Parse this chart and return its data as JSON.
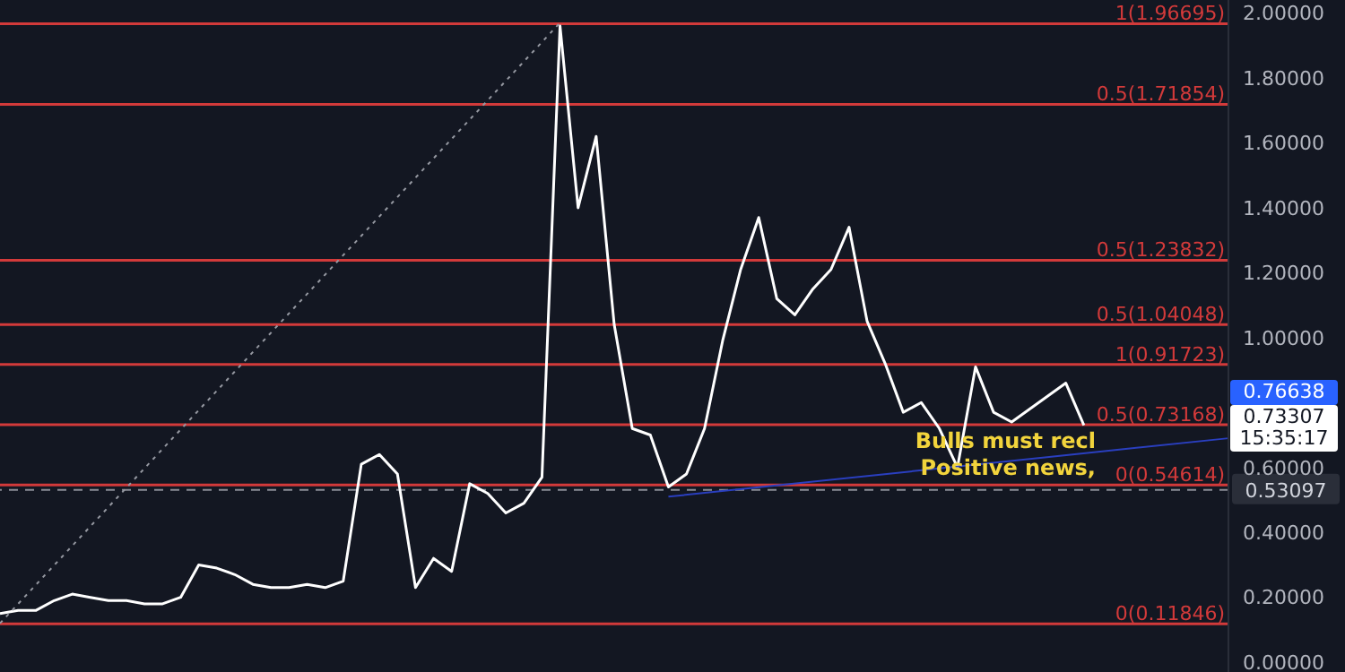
{
  "chart_data": {
    "type": "line",
    "categories": [
      null,
      null,
      null,
      null,
      null,
      null,
      null,
      null,
      null,
      null,
      null,
      null,
      null,
      null,
      null,
      null,
      null,
      null,
      null,
      null,
      null,
      null,
      null,
      null,
      null,
      null,
      null,
      null,
      null,
      null,
      null,
      null,
      null,
      null,
      null,
      null,
      null,
      null,
      null,
      null,
      null,
      null,
      null,
      null,
      null,
      null,
      null,
      null,
      null,
      null,
      null,
      null,
      null,
      null,
      null,
      null,
      null,
      null,
      null,
      null,
      null,
      null,
      null,
      null,
      null,
      null,
      null,
      null,
      null
    ],
    "series": [
      {
        "color": "#ffffff",
        "values": [
          0.15,
          0.16,
          0.16,
          0.19,
          0.21,
          0.2,
          0.19,
          0.19,
          0.18,
          0.18,
          0.2,
          0.3,
          0.29,
          0.27,
          0.24,
          0.23,
          0.23,
          0.24,
          0.23,
          0.25,
          0.61,
          0.64,
          0.58,
          0.23,
          0.32,
          0.28,
          0.55,
          0.52,
          0.46,
          0.49,
          0.57,
          1.96,
          1.4,
          1.62,
          1.04,
          0.72,
          0.7,
          0.54,
          0.58,
          0.72,
          0.99,
          1.21,
          1.37,
          1.12,
          1.07,
          1.15,
          1.21,
          1.34,
          1.05,
          0.92,
          0.77,
          0.8,
          0.72,
          0.6,
          0.91,
          0.77,
          0.74,
          0.78,
          0.82,
          0.86,
          0.73,
          null,
          null,
          null,
          null,
          null,
          null,
          null,
          null
        ]
      },
      {
        "color": "#2a3fbf",
        "values": [
          null,
          null,
          null,
          null,
          null,
          null,
          null,
          null,
          null,
          null,
          null,
          null,
          null,
          null,
          null,
          null,
          null,
          null,
          null,
          null,
          null,
          null,
          null,
          null,
          null,
          null,
          null,
          null,
          null,
          null,
          null,
          null,
          null,
          null,
          null,
          null,
          null,
          0.51,
          null,
          null,
          null,
          null,
          null,
          null,
          null,
          null,
          null,
          null,
          null,
          null,
          null,
          null,
          null,
          null,
          null,
          null,
          null,
          null,
          null,
          null,
          null,
          null,
          null,
          null,
          null,
          null,
          null,
          null,
          0.69
        ]
      },
      {
        "color": "#9598a1",
        "line_style": "dotted",
        "values": [
          0.12,
          null,
          null,
          null,
          null,
          null,
          null,
          null,
          null,
          null,
          null,
          null,
          null,
          null,
          null,
          null,
          null,
          null,
          null,
          null,
          null,
          null,
          null,
          null,
          null,
          null,
          null,
          null,
          null,
          null,
          null,
          1.97,
          null,
          null,
          null,
          null,
          null,
          null,
          null,
          null,
          null,
          null,
          null,
          null,
          null,
          null,
          null,
          null,
          null,
          null,
          null,
          null,
          null,
          null,
          null,
          null,
          null,
          null,
          null,
          null,
          null,
          null,
          null,
          null,
          null,
          null,
          null,
          null,
          null
        ]
      }
    ],
    "ylim": [
      -0.03,
      2.04
    ],
    "yticks": [
      {
        "value": 0,
        "label": "0.00000"
      },
      {
        "value": 0.2,
        "label": "0.20000"
      },
      {
        "value": 0.4,
        "label": "0.40000"
      },
      {
        "value": 0.6,
        "label": "0.60000"
      },
      {
        "value": 1,
        "label": "1.00000"
      },
      {
        "value": 1.2,
        "label": "1.20000"
      },
      {
        "value": 1.4,
        "label": "1.40000"
      },
      {
        "value": 1.6,
        "label": "1.60000"
      },
      {
        "value": 1.8,
        "label": "1.80000"
      },
      {
        "value": 2,
        "label": "2.00000"
      }
    ],
    "tick_labels": "y",
    "grid": false,
    "legend": false,
    "marker": "none",
    "ref_lines": [
      {
        "axis": "y",
        "value": 1.96695,
        "label": "1(1.96695)",
        "color": "#d23a3a"
      },
      {
        "axis": "y",
        "value": 1.71854,
        "label": "0.5(1.71854)",
        "color": "#d23a3a"
      },
      {
        "axis": "y",
        "value": 1.23832,
        "label": "0.5(1.23832)",
        "color": "#d23a3a"
      },
      {
        "axis": "y",
        "value": 1.04048,
        "label": "0.5(1.04048)",
        "color": "#d23a3a"
      },
      {
        "axis": "y",
        "value": 0.91723,
        "label": "1(0.91723)",
        "color": "#d23a3a"
      },
      {
        "axis": "y",
        "value": 0.73168,
        "label": "0.5(0.73168)",
        "color": "#d23a3a"
      },
      {
        "axis": "y",
        "value": 0.54614,
        "label": "0(0.54614)",
        "color": "#d23a3a"
      },
      {
        "axis": "y",
        "value": 0.11846,
        "label": "0(0.11846)",
        "color": "#d23a3a"
      },
      {
        "axis": "y",
        "value": 0.53097,
        "label": "0.53097",
        "color": "#8a8d96",
        "line_style": "dashed"
      }
    ],
    "annotations": [
      "0.76638",
      "0.73307\n15:35:17",
      "Bulls must recl",
      "Positive news,"
    ]
  }
}
